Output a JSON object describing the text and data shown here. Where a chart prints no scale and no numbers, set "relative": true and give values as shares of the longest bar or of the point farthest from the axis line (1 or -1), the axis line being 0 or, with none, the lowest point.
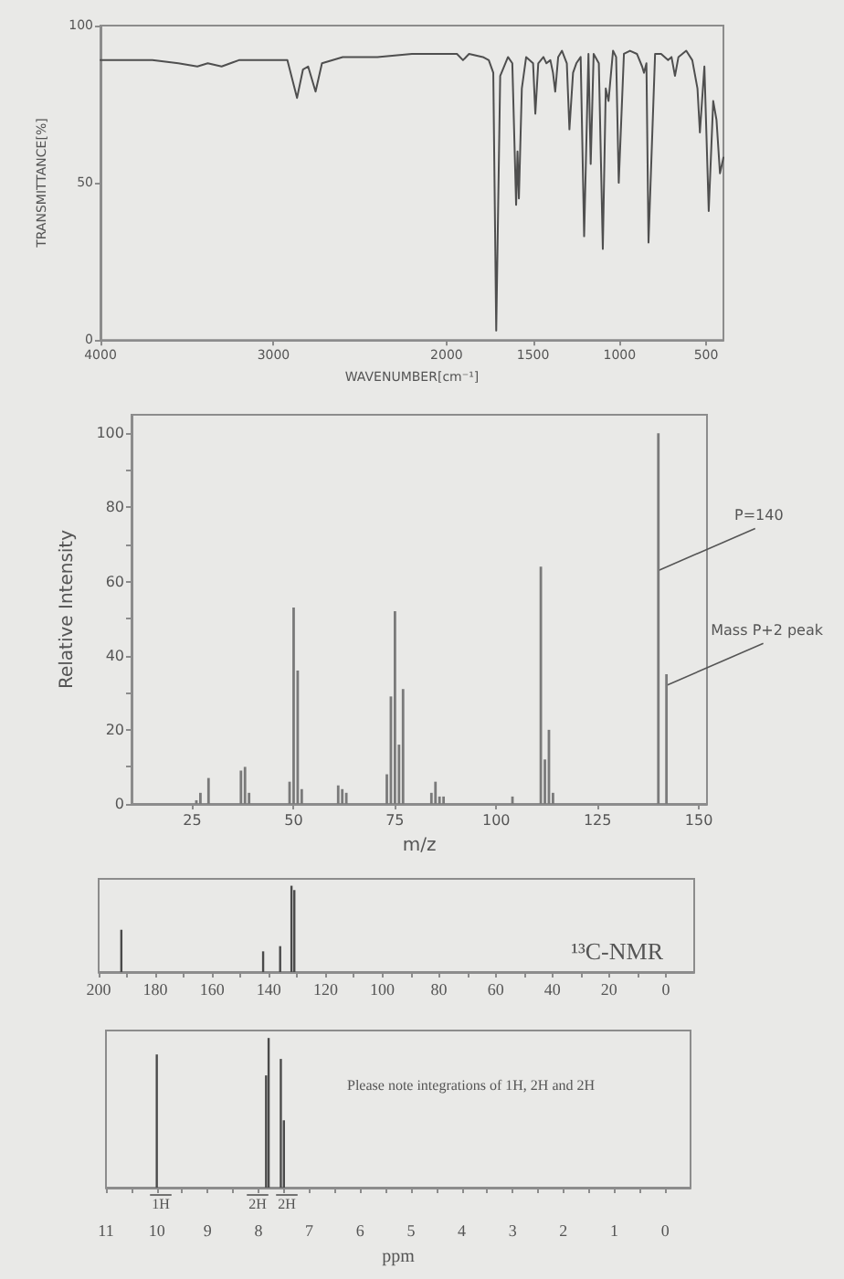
{
  "chart_data": [
    {
      "type": "line",
      "xlabel": "WAVENUMBER[cm⁻¹]",
      "ylabel": "TRANSMITTANCE[%]",
      "color": "#4f4f4f",
      "xlim": [
        4000,
        400
      ],
      "xticks": [
        4000,
        3000,
        2000,
        1500,
        1000,
        500
      ],
      "ylim": [
        0,
        100
      ],
      "yticks": [
        0,
        50,
        100
      ],
      "x": [
        4000,
        3700,
        3550,
        3440,
        3380,
        3300,
        3200,
        3000,
        2920,
        2864,
        2830,
        2800,
        2757,
        2720,
        2600,
        2400,
        2200,
        2000,
        1940,
        1905,
        1870,
        1790,
        1756,
        1730,
        1713,
        1690,
        1645,
        1620,
        1598,
        1590,
        1582,
        1565,
        1540,
        1500,
        1487,
        1470,
        1440,
        1423,
        1400,
        1385,
        1372,
        1355,
        1333,
        1305,
        1290,
        1269,
        1250,
        1225,
        1205,
        1180,
        1167,
        1150,
        1120,
        1097,
        1080,
        1064,
        1038,
        1020,
        1005,
        975,
        940,
        900,
        870,
        859,
        845,
        833,
        795,
        760,
        720,
        700,
        680,
        660,
        615,
        580,
        550,
        536,
        510,
        485,
        459,
        440,
        420,
        400
      ],
      "values": [
        89,
        89,
        88,
        87,
        88,
        87,
        89,
        89,
        89,
        77,
        86,
        87,
        79,
        88,
        90,
        90,
        91,
        91,
        91,
        89,
        91,
        90,
        89,
        85,
        3,
        84,
        90,
        88,
        43,
        60,
        45,
        80,
        90,
        88,
        72,
        88,
        90,
        88,
        89,
        85,
        79,
        90,
        92,
        88,
        67,
        85,
        88,
        90,
        33,
        91,
        56,
        91,
        88,
        29,
        80,
        76,
        92,
        90,
        50,
        91,
        92,
        91,
        87,
        85,
        88,
        31,
        91,
        91,
        89,
        90,
        84,
        90,
        92,
        89,
        80,
        66,
        87,
        41,
        76,
        70,
        53,
        58
      ]
    },
    {
      "type": "bar",
      "xlabel": "m/z",
      "ylabel": "Relative Intensity",
      "color": "#7a7a7a",
      "xlim": [
        10,
        152
      ],
      "xticks": [
        25,
        50,
        75,
        100,
        125,
        150
      ],
      "ylim": [
        0,
        105
      ],
      "yticks": [
        0,
        {
          "value": 10,
          "label": null
        },
        20,
        {
          "value": 30,
          "label": null
        },
        40,
        {
          "value": 50,
          "label": null
        },
        60,
        {
          "value": 70,
          "label": null
        },
        80,
        {
          "value": 90,
          "label": null
        },
        100
      ],
      "x": [
        26,
        27,
        29,
        37,
        38,
        39,
        49,
        50,
        51,
        52,
        61,
        62,
        63,
        73,
        74,
        75,
        76,
        77,
        84,
        85,
        86,
        87,
        104,
        111,
        112,
        113,
        114,
        140,
        142
      ],
      "values": [
        1,
        3,
        7,
        9,
        10,
        3,
        6,
        53,
        36,
        4,
        5,
        4,
        3,
        8,
        29,
        52,
        16,
        31,
        3,
        6,
        2,
        2,
        2,
        64,
        12,
        20,
        3,
        100,
        35
      ],
      "annotations": [
        {
          "text": "P=140",
          "x": 140,
          "y": 63
        },
        {
          "text": "Mass P+2 peak",
          "x": 142,
          "y": 32
        }
      ]
    },
    {
      "type": "bar",
      "title": "¹³C-NMR",
      "relative": true,
      "color": "#4a4a4a",
      "xlim": [
        200,
        -10
      ],
      "xticks": [
        200,
        {
          "value": 190,
          "label": null
        },
        180,
        {
          "value": 170,
          "label": null
        },
        160,
        {
          "value": 150,
          "label": null
        },
        140,
        {
          "value": 130,
          "label": null
        },
        120,
        {
          "value": 110,
          "label": null
        },
        100,
        {
          "value": 90,
          "label": null
        },
        80,
        {
          "value": 70,
          "label": null
        },
        60,
        {
          "value": 50,
          "label": null
        },
        40,
        {
          "value": 30,
          "label": null
        },
        20,
        {
          "value": 10,
          "label": null
        },
        0
      ],
      "x": [
        192,
        142,
        136,
        132,
        131
      ],
      "values": [
        0.49,
        0.24,
        0.3,
        1,
        0.95
      ]
    },
    {
      "type": "bar",
      "xlabel": "ppm",
      "relative": true,
      "color": "#4a4a4a",
      "xlim": [
        11,
        -0.5
      ],
      "xticks": [
        11,
        {
          "value": 10.5,
          "label": null
        },
        10,
        {
          "value": 9.5,
          "label": null
        },
        9,
        {
          "value": 8.5,
          "label": null
        },
        8,
        {
          "value": 7.5,
          "label": null
        },
        7,
        {
          "value": 6.5,
          "label": null
        },
        6,
        {
          "value": 5.5,
          "label": null
        },
        5,
        {
          "value": 4.5,
          "label": null
        },
        4,
        {
          "value": 3.5,
          "label": null
        },
        3,
        {
          "value": 2.5,
          "label": null
        },
        2,
        {
          "value": 1.5,
          "label": null
        },
        1,
        {
          "value": 0.5,
          "label": null
        },
        0
      ],
      "x": [
        10,
        7.85,
        7.8,
        7.56,
        7.5
      ],
      "values": [
        0.89,
        0.75,
        1,
        0.86,
        0.45
      ],
      "annotations": [
        "Please note integrations of 1H, 2H and 2H",
        "1H",
        "2H",
        "2H"
      ]
    }
  ]
}
